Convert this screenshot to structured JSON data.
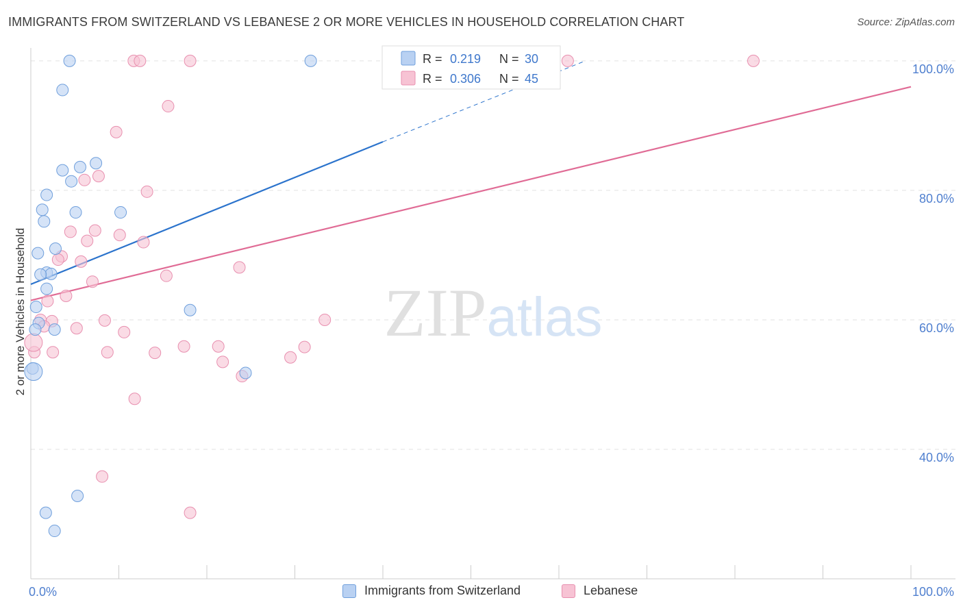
{
  "chart_data": {
    "type": "scatter",
    "title": "IMMIGRANTS FROM SWITZERLAND VS LEBANESE 2 OR MORE VEHICLES IN HOUSEHOLD CORRELATION CHART",
    "source": "Source: ZipAtlas.com",
    "xlabel": "",
    "ylabel": "2 or more Vehicles in Household",
    "xlim": [
      0,
      100
    ],
    "ylim": [
      20,
      102
    ],
    "x_tick_labels": {
      "left": "0.0%",
      "right": "100.0%"
    },
    "y_ticks": [
      {
        "value": 40,
        "label": "40.0%"
      },
      {
        "value": 60,
        "label": "60.0%"
      },
      {
        "value": 80,
        "label": "80.0%"
      },
      {
        "value": 100,
        "label": "100.0%"
      }
    ],
    "grid": true,
    "watermark": "ZIPatlas",
    "legend_position": "top-center",
    "series": [
      {
        "name": "Immigrants from Switzerland",
        "color": "#6f9fdc",
        "fill": "#b9d1f2",
        "line_color": "#2b73cc",
        "R": "0.219",
        "N": "30",
        "trend": {
          "x0": 0,
          "y0": 65.5,
          "x1": 40,
          "y1": 87.5,
          "dashed_to_x": 63,
          "dashed_to_y": 100
        },
        "points": [
          [
            4.4,
            100
          ],
          [
            31.8,
            100
          ],
          [
            3.6,
            95.5
          ],
          [
            7.4,
            84.2
          ],
          [
            5.6,
            83.6
          ],
          [
            3.6,
            83.1
          ],
          [
            4.6,
            81.4
          ],
          [
            1.8,
            79.3
          ],
          [
            1.3,
            77.0
          ],
          [
            5.1,
            76.6
          ],
          [
            10.2,
            76.6
          ],
          [
            1.5,
            75.2
          ],
          [
            2.8,
            71.0
          ],
          [
            0.8,
            70.3
          ],
          [
            1.8,
            67.3
          ],
          [
            2.3,
            67.1
          ],
          [
            1.1,
            67.0
          ],
          [
            1.8,
            64.8
          ],
          [
            0.6,
            62.0
          ],
          [
            18.1,
            61.5
          ],
          [
            0.9,
            59.5
          ],
          [
            0.5,
            58.5
          ],
          [
            2.7,
            58.5
          ],
          [
            0.2,
            52.5
          ],
          [
            0.3,
            52.0
          ],
          [
            24.4,
            51.8
          ],
          [
            5.3,
            32.8
          ],
          [
            1.7,
            30.2
          ],
          [
            2.7,
            27.4
          ]
        ]
      },
      {
        "name": "Lebanese",
        "color": "#e88faf",
        "fill": "#f7c3d4",
        "line_color": "#e06b95",
        "R": "0.306",
        "N": "45",
        "trend": {
          "x0": 0,
          "y0": 63.0,
          "x1": 100,
          "y1": 96.0
        },
        "points": [
          [
            11.7,
            100
          ],
          [
            12.4,
            100
          ],
          [
            18.1,
            100
          ],
          [
            61,
            100
          ],
          [
            82.1,
            100
          ],
          [
            15.6,
            93.0
          ],
          [
            9.7,
            89.0
          ],
          [
            7.7,
            82.2
          ],
          [
            6.1,
            81.6
          ],
          [
            13.2,
            79.8
          ],
          [
            7.3,
            73.8
          ],
          [
            4.5,
            73.6
          ],
          [
            10.1,
            73.1
          ],
          [
            6.4,
            72.2
          ],
          [
            12.8,
            72.0
          ],
          [
            3.5,
            69.8
          ],
          [
            3.1,
            69.3
          ],
          [
            5.7,
            69.0
          ],
          [
            23.7,
            68.1
          ],
          [
            15.4,
            66.8
          ],
          [
            7.0,
            65.9
          ],
          [
            4.0,
            63.7
          ],
          [
            1.9,
            62.9
          ],
          [
            1.1,
            60.0
          ],
          [
            2.4,
            59.8
          ],
          [
            8.4,
            59.9
          ],
          [
            33.4,
            60.0
          ],
          [
            1.5,
            59.0
          ],
          [
            5.2,
            58.7
          ],
          [
            10.6,
            58.1
          ],
          [
            17.4,
            55.9
          ],
          [
            21.3,
            55.9
          ],
          [
            31.1,
            55.8
          ],
          [
            0.4,
            55.0
          ],
          [
            2.5,
            55.0
          ],
          [
            8.7,
            55.0
          ],
          [
            14.1,
            54.9
          ],
          [
            29.5,
            54.2
          ],
          [
            21.8,
            53.5
          ],
          [
            24.0,
            51.3
          ],
          [
            11.8,
            47.8
          ],
          [
            8.1,
            35.8
          ],
          [
            18.1,
            30.2
          ],
          [
            0.3,
            56.5
          ]
        ]
      }
    ]
  }
}
